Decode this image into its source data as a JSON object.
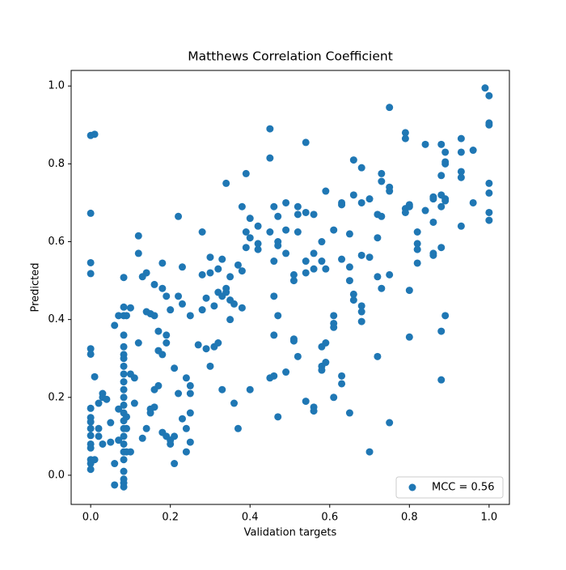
{
  "chart_data": {
    "type": "scatter",
    "title": "Matthews Correlation Coefficient",
    "x_label": "Validation targets",
    "y_label": "Predicted",
    "xlim": [
      -0.049,
      1.051
    ],
    "ylim": [
      -0.075,
      1.04
    ],
    "xticks": [
      {
        "value": 0,
        "label": "0.0"
      },
      0.2,
      0.4,
      0.6,
      0.8,
      {
        "value": 1,
        "label": "1.0"
      }
    ],
    "yticks": [
      {
        "value": 0,
        "label": "0.0"
      },
      0.2,
      0.4,
      0.6,
      0.8,
      {
        "value": 1,
        "label": "1.0"
      }
    ],
    "legend": "lower-right",
    "x": [
      0,
      0,
      0,
      0,
      0,
      0,
      0,
      0,
      0,
      0,
      0,
      0,
      0,
      0,
      0,
      0,
      0.01,
      0.01,
      0.01,
      0.02,
      0.02,
      0.02,
      0.03,
      0.03,
      0.03,
      0.04,
      0.05,
      0.05,
      0.06,
      0.06,
      0.06,
      0.07,
      0.07,
      0.07,
      0.083,
      0.083,
      0.083,
      0.083,
      0.083,
      0.083,
      0.083,
      0.083,
      0.083,
      0.083,
      0.083,
      0.083,
      0.083,
      0.083,
      0.083,
      0.083,
      0.083,
      0.083,
      0.083,
      0.083,
      0.083,
      0.083,
      0.083,
      0.083,
      0.09,
      0.09,
      0.09,
      0.09,
      0.1,
      0.1,
      0.1,
      0.11,
      0.11,
      0.12,
      0.12,
      0.12,
      0.13,
      0.13,
      0.14,
      0.14,
      0.14,
      0.15,
      0.15,
      0.15,
      0.16,
      0.16,
      0.16,
      0.16,
      0.17,
      0.17,
      0.17,
      0.18,
      0.18,
      0.18,
      0.18,
      0.19,
      0.19,
      0.19,
      0.19,
      0.2,
      0.2,
      0.2,
      0.21,
      0.21,
      0.21,
      0.22,
      0.22,
      0.22,
      0.23,
      0.23,
      0.23,
      0.24,
      0.24,
      0.24,
      0.25,
      0.25,
      0.25,
      0.25,
      0.25,
      0.27,
      0.28,
      0.28,
      0.28,
      0.29,
      0.29,
      0.3,
      0.3,
      0.3,
      0.31,
      0.31,
      0.32,
      0.32,
      0.32,
      0.33,
      0.33,
      0.33,
      0.34,
      0.34,
      0.34,
      0.35,
      0.35,
      0.35,
      0.36,
      0.36,
      0.37,
      0.37,
      0.38,
      0.38,
      0.38,
      0.39,
      0.39,
      0.39,
      0.4,
      0.4,
      0.4,
      0.42,
      0.42,
      0.42,
      0.45,
      0.45,
      0.45,
      0.45,
      0.46,
      0.46,
      0.46,
      0.46,
      0.46,
      0.47,
      0.47,
      0.47,
      0.47,
      0.47,
      0.49,
      0.49,
      0.49,
      0.49,
      0.51,
      0.51,
      0.51,
      0.51,
      0.52,
      0.52,
      0.52,
      0.52,
      0.54,
      0.54,
      0.54,
      0.54,
      0.54,
      0.56,
      0.56,
      0.56,
      0.56,
      0.56,
      0.58,
      0.58,
      0.58,
      0.58,
      0.58,
      0.59,
      0.59,
      0.59,
      0.59,
      0.61,
      0.61,
      0.61,
      0.61,
      0.61,
      0.63,
      0.63,
      0.63,
      0.63,
      0.63,
      0.65,
      0.65,
      0.65,
      0.65,
      0.66,
      0.66,
      0.66,
      0.66,
      0.68,
      0.68,
      0.68,
      0.68,
      0.68,
      0.68,
      0.7,
      0.7,
      0.7,
      0.72,
      0.72,
      0.72,
      0.72,
      0.73,
      0.73,
      0.73,
      0.73,
      0.75,
      0.75,
      0.75,
      0.75,
      0.75,
      0.79,
      0.79,
      0.79,
      0.79,
      0.8,
      0.8,
      0.8,
      0.8,
      0.82,
      0.82,
      0.82,
      0.82,
      0.84,
      0.84,
      0.86,
      0.86,
      0.86,
      0.86,
      0.86,
      0.88,
      0.88,
      0.88,
      0.88,
      0.88,
      0.88,
      0.88,
      0.89,
      0.89,
      0.89,
      0.89,
      0.89,
      0.89,
      0.93,
      0.93,
      0.93,
      0.93,
      0.93,
      0.96,
      0.96,
      0.99,
      1,
      1,
      1,
      1,
      1,
      1,
      1
    ],
    "series": [
      {
        "name": "MCC = 0.56",
        "color": "#1f77b4",
        "values": [
          0.873,
          0.673,
          0.546,
          0.518,
          0.325,
          0.311,
          0.172,
          0.148,
          0.137,
          0.12,
          0.102,
          0.08,
          0.07,
          0.04,
          0.03,
          0.015,
          0.876,
          0.253,
          0.04,
          0.185,
          0.1,
          0.12,
          0.21,
          0.2,
          0.08,
          0.195,
          0.085,
          0.135,
          0.385,
          0.03,
          -0.025,
          0.17,
          0.09,
          0.41,
          0.508,
          0.432,
          0.41,
          0.36,
          0.33,
          0.31,
          0.3,
          0.28,
          0.26,
          0.24,
          0.22,
          0.2,
          0.18,
          0.16,
          0.14,
          0.12,
          0.1,
          0.08,
          0.06,
          0.04,
          0.01,
          -0.01,
          -0.02,
          -0.03,
          0.41,
          0.15,
          0.12,
          0.06,
          0.43,
          0.06,
          0.26,
          0.25,
          0.185,
          0.57,
          0.34,
          0.615,
          0.51,
          0.095,
          0.52,
          0.42,
          0.12,
          0.415,
          0.17,
          0.16,
          0.41,
          0.49,
          0.22,
          0.175,
          0.37,
          0.32,
          0.23,
          0.48,
          0.545,
          0.31,
          0.11,
          0.36,
          0.46,
          0.1,
          0.34,
          0.425,
          0.09,
          0.08,
          0.1,
          0.275,
          0.03,
          0.665,
          0.46,
          0.21,
          0.145,
          0.535,
          0.44,
          0.06,
          0.12,
          0.25,
          0.21,
          0.23,
          0.16,
          0.085,
          0.41,
          0.335,
          0.625,
          0.425,
          0.515,
          0.325,
          0.455,
          0.52,
          0.56,
          0.28,
          0.435,
          0.33,
          0.47,
          0.53,
          0.34,
          0.555,
          0.22,
          0.46,
          0.75,
          0.47,
          0.48,
          0.45,
          0.51,
          0.4,
          0.185,
          0.44,
          0.54,
          0.12,
          0.69,
          0.43,
          0.525,
          0.775,
          0.625,
          0.585,
          0.66,
          0.61,
          0.22,
          0.64,
          0.58,
          0.595,
          0.625,
          0.89,
          0.815,
          0.25,
          0.69,
          0.55,
          0.46,
          0.36,
          0.255,
          0.665,
          0.6,
          0.59,
          0.41,
          0.15,
          0.7,
          0.63,
          0.57,
          0.265,
          0.515,
          0.5,
          0.35,
          0.345,
          0.625,
          0.67,
          0.305,
          0.69,
          0.855,
          0.675,
          0.55,
          0.19,
          0.52,
          0.67,
          0.57,
          0.53,
          0.175,
          0.165,
          0.6,
          0.33,
          0.28,
          0.27,
          0.55,
          0.73,
          0.53,
          0.29,
          0.34,
          0.63,
          0.41,
          0.39,
          0.2,
          0.38,
          0.7,
          0.555,
          0.695,
          0.235,
          0.255,
          0.62,
          0.535,
          0.5,
          0.16,
          0.81,
          0.72,
          0.465,
          0.45,
          0.79,
          0.7,
          0.565,
          0.435,
          0.42,
          0.395,
          0.71,
          0.56,
          0.06,
          0.67,
          0.61,
          0.51,
          0.305,
          0.775,
          0.755,
          0.665,
          0.48,
          0.945,
          0.74,
          0.73,
          0.515,
          0.135,
          0.88,
          0.865,
          0.685,
          0.675,
          0.69,
          0.475,
          0.355,
          0.695,
          0.625,
          0.595,
          0.545,
          0.58,
          0.85,
          0.68,
          0.57,
          0.565,
          0.65,
          0.71,
          0.715,
          0.85,
          0.72,
          0.77,
          0.69,
          0.585,
          0.37,
          0.245,
          0.83,
          0.805,
          0.8,
          0.705,
          0.71,
          0.41,
          0.765,
          0.64,
          0.78,
          0.83,
          0.865,
          0.7,
          0.835,
          0.995,
          0.905,
          0.9,
          0.75,
          0.725,
          0.975,
          0.675,
          0.655
        ]
      }
    ]
  }
}
